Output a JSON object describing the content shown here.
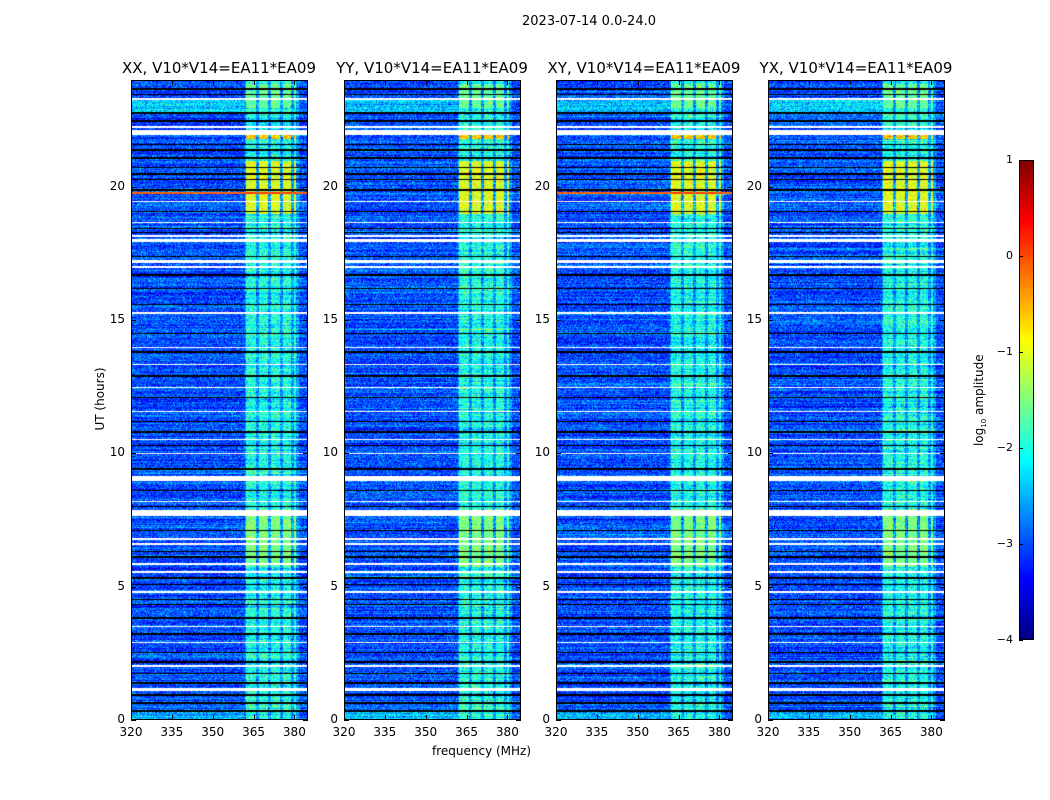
{
  "figure": {
    "suptitle": "2023-07-14 0.0-24.0"
  },
  "chart_data": {
    "type": "heatmap",
    "title": "2023-07-14 0.0-24.0",
    "panels": [
      {
        "title": "XX, V10*V14=EA11*EA09",
        "orange_line_hour": 19.8
      },
      {
        "title": "YY, V10*V14=EA11*EA09",
        "orange_line_hour": null
      },
      {
        "title": "XY, V10*V14=EA11*EA09",
        "orange_line_hour": 19.8
      },
      {
        "title": "YX, V10*V14=EA11*EA09",
        "orange_line_hour": null
      }
    ],
    "xlabel": "frequency (MHz)",
    "ylabel": "UT (hours)",
    "xlim": [
      320,
      385
    ],
    "ylim": [
      0,
      24
    ],
    "xticks": [
      320,
      335,
      350,
      365,
      380
    ],
    "xtick_labels": [
      "320",
      "335",
      "350",
      "365",
      "380"
    ],
    "yticks": [
      0,
      5,
      10,
      15,
      20
    ],
    "ytick_labels": [
      "0",
      "5",
      "10",
      "15",
      "20"
    ],
    "colorbar": {
      "label": "log10 amplitude",
      "label_main": "log",
      "label_sub": "10",
      "label_rest": " amplitude",
      "clim": [
        -4,
        1
      ],
      "ticks": [
        1,
        0,
        -1,
        -2,
        -3,
        -4
      ],
      "tick_labels": [
        "1",
        "0",
        "−1",
        "−2",
        "−3",
        "−4"
      ],
      "colormap": "jet"
    },
    "background_level": -3.0,
    "rfi_channels_mhz": [
      [
        362.5,
        366
      ],
      [
        367,
        370.5
      ],
      [
        371.5,
        375
      ],
      [
        376,
        379
      ],
      [
        380,
        381
      ]
    ],
    "rfi_boost": 0.6,
    "rfi_blocks": [
      {
        "hours": [
          5.7,
          7.9
        ],
        "level": -1.5
      },
      {
        "hours": [
          19.0,
          21.0
        ],
        "level": -1.0
      },
      {
        "hours": [
          21.8,
          22.1
        ],
        "level": -0.6
      },
      {
        "hours": [
          23.0,
          23.9
        ],
        "level": -1.6
      }
    ],
    "flagged_hours": [
      [
        1.05,
        1.15
      ],
      [
        1.95,
        2.02
      ],
      [
        2.85,
        2.9
      ],
      [
        3.45,
        3.5
      ],
      [
        4.75,
        4.8
      ],
      [
        5.5,
        5.55
      ],
      [
        5.8,
        5.85
      ],
      [
        6.55,
        6.62
      ],
      [
        6.75,
        6.8
      ],
      [
        7.65,
        7.85
      ],
      [
        8.15,
        8.2
      ],
      [
        8.95,
        9.15
      ],
      [
        9.95,
        10.0
      ],
      [
        10.5,
        10.55
      ],
      [
        11.55,
        11.6
      ],
      [
        12.45,
        12.5
      ],
      [
        13.3,
        13.35
      ],
      [
        13.95,
        14.0
      ],
      [
        15.25,
        15.3
      ],
      [
        16.95,
        17.05
      ],
      [
        17.15,
        17.25
      ],
      [
        17.95,
        18.05
      ],
      [
        18.15,
        18.2
      ],
      [
        18.65,
        18.7
      ],
      [
        19.45,
        19.5
      ],
      [
        21.95,
        22.15
      ],
      [
        22.25,
        22.3
      ],
      [
        23.3,
        23.35
      ]
    ],
    "dark_hours": [
      0.3,
      0.6,
      0.9,
      1.35,
      1.7,
      2.15,
      2.5,
      3.2,
      3.8,
      4.3,
      4.5,
      5.05,
      5.3,
      6.1,
      6.3,
      7.1,
      8.0,
      8.6,
      9.4,
      10.3,
      10.8,
      11.2,
      12.1,
      12.9,
      13.8,
      14.5,
      15.6,
      16.2,
      16.7,
      17.4,
      18.3,
      18.45,
      19.1,
      19.9,
      20.3,
      20.5,
      20.75,
      21.1,
      21.4,
      21.6,
      22.5,
      22.8,
      23.5,
      23.7
    ],
    "bright_rows": [
      {
        "hours": [
          22.85,
          23.3
        ],
        "level": -2.4
      },
      {
        "hours": [
          0.0,
          0.3
        ],
        "level": -2.5
      },
      {
        "hours": [
          1.95,
          2.05
        ],
        "level": -1.8
      }
    ]
  }
}
